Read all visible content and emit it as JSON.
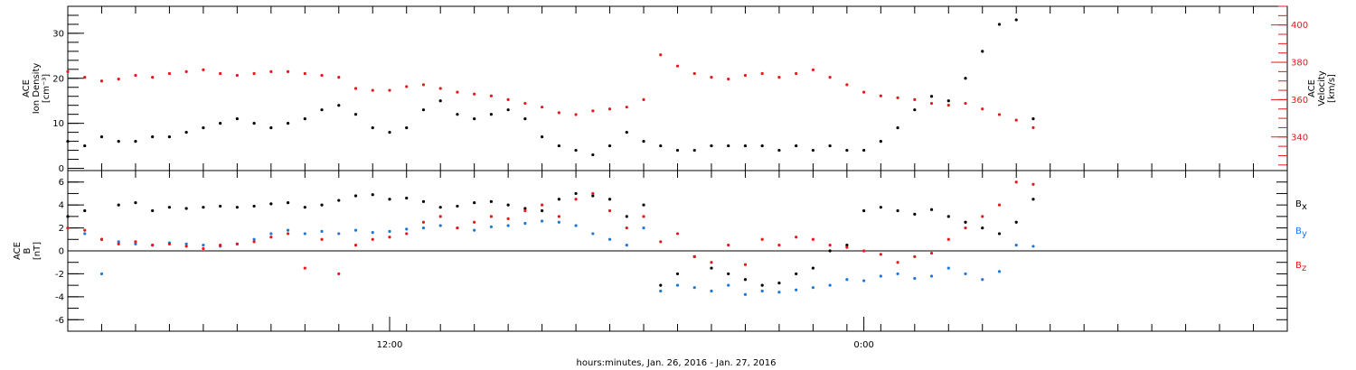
{
  "colors": {
    "axis": "#000000",
    "density": "#000000",
    "velocity": "#e41a1c",
    "bx": "#000000",
    "by": "#1f78d4",
    "bz": "#e41a1c"
  },
  "chart_data": [
    {
      "id": "top",
      "type": "scatter",
      "xlabel": "hours:minutes, Jan. 26, 2016 - Jan. 27, 2016",
      "x_range": [
        0,
        36
      ],
      "x_ticks": [
        {
          "value": 9.5,
          "label": "12:00"
        },
        {
          "value": 23.5,
          "label": "0:00"
        }
      ],
      "ylabel_left": [
        "ACE",
        "Ion Density",
        "[cm⁻³]"
      ],
      "ylim_left": [
        -0.5,
        36
      ],
      "yticks_left": [
        0,
        10,
        20,
        30
      ],
      "ylabel_right": [
        "ACE",
        "Velocity",
        "[km/s]"
      ],
      "ylim_right": [
        322,
        410
      ],
      "yticks_right": [
        340,
        360,
        380,
        400
      ],
      "series": [
        {
          "name": "",
          "axis": "left",
          "color_key": "density",
          "x": [
            0,
            0.5,
            1,
            1.5,
            2,
            2.5,
            3,
            3.5,
            4,
            4.5,
            5,
            5.5,
            6,
            6.5,
            7,
            7.5,
            8,
            8.5,
            9,
            9.5,
            10,
            10.5,
            11,
            11.5,
            12,
            12.5,
            13,
            13.5,
            14,
            14.5,
            15,
            15.5,
            16,
            16.5,
            17,
            17.5,
            18,
            18.5,
            19,
            19.5,
            20,
            20.5,
            21,
            21.5,
            22,
            22.5,
            23,
            23.5,
            24,
            24.5,
            25,
            25.5,
            26,
            26.5,
            27,
            27.5,
            28,
            28.5
          ],
          "y": [
            6,
            5,
            7,
            6,
            6,
            7,
            7,
            8,
            9,
            10,
            11,
            10,
            9,
            10,
            11,
            13,
            14,
            12,
            9,
            8,
            9,
            13,
            15,
            12,
            11,
            12,
            13,
            11,
            7,
            5,
            4,
            3,
            5,
            8,
            6,
            5,
            4,
            4,
            5,
            5,
            5,
            5,
            4,
            5,
            4,
            5,
            4,
            4,
            6,
            9,
            13,
            16,
            15,
            20,
            26,
            32,
            33,
            11
          ]
        },
        {
          "name": "",
          "axis": "right",
          "color_key": "velocity",
          "x": [
            0,
            0.5,
            1,
            1.5,
            2,
            2.5,
            3,
            3.5,
            4,
            4.5,
            5,
            5.5,
            6,
            6.5,
            7,
            7.5,
            8,
            8.5,
            9,
            9.5,
            10,
            10.5,
            11,
            11.5,
            12,
            12.5,
            13,
            13.5,
            14,
            14.5,
            15,
            15.5,
            16,
            16.5,
            17,
            17.5,
            18,
            18.5,
            19,
            19.5,
            20,
            20.5,
            21,
            21.5,
            22,
            22.5,
            23,
            23.5,
            24,
            24.5,
            25,
            25.5,
            26,
            26.5,
            27,
            27.5,
            28,
            28.5
          ],
          "y": [
            375,
            372,
            370,
            371,
            373,
            372,
            374,
            375,
            376,
            374,
            373,
            374,
            375,
            375,
            374,
            373,
            372,
            366,
            365,
            365,
            367,
            368,
            366,
            364,
            363,
            362,
            360,
            358,
            356,
            353,
            352,
            354,
            355,
            356,
            360,
            384,
            378,
            374,
            372,
            371,
            373,
            374,
            372,
            374,
            376,
            372,
            368,
            364,
            362,
            361,
            360,
            358,
            357,
            358,
            355,
            352,
            349,
            345
          ]
        }
      ]
    },
    {
      "id": "bottom",
      "type": "scatter",
      "x_range": [
        0,
        36
      ],
      "ylabel": [
        "ACE",
        "B",
        "[nT]"
      ],
      "ylim": [
        -7,
        7
      ],
      "yticks": [
        -6,
        -4,
        -2,
        0,
        2,
        4,
        6
      ],
      "series": [
        {
          "name": "B",
          "sub": "x",
          "color_key": "bx",
          "x": [
            0,
            0.5,
            1,
            1.5,
            2,
            2.5,
            3,
            3.5,
            4,
            4.5,
            5,
            5.5,
            6,
            6.5,
            7,
            7.5,
            8,
            8.5,
            9,
            9.5,
            10,
            10.5,
            11,
            11.5,
            12,
            12.5,
            13,
            13.5,
            14,
            14.5,
            15,
            15.5,
            16,
            16.5,
            17,
            17.5,
            18,
            18.5,
            19,
            19.5,
            20,
            20.5,
            21,
            21.5,
            22,
            22.5,
            23,
            23.5,
            24,
            24.5,
            25,
            25.5,
            26,
            26.5,
            27,
            27.5,
            28,
            28.5
          ],
          "y": [
            3,
            3.5,
            1,
            4,
            4.2,
            3.5,
            3.8,
            3.7,
            3.8,
            3.9,
            3.8,
            3.9,
            4.1,
            4.2,
            3.8,
            4,
            4.4,
            4.8,
            4.9,
            4.5,
            4.6,
            4.3,
            3.8,
            3.9,
            4.2,
            4.3,
            4,
            3.7,
            3.5,
            4.5,
            5,
            4.8,
            4.5,
            3,
            4,
            -3,
            -2,
            -0.5,
            -1.5,
            -2,
            -2.5,
            -3,
            -2.8,
            -2,
            -1.5,
            0,
            0.5,
            3.5,
            3.8,
            3.5,
            3.2,
            3.6,
            3,
            2.5,
            2,
            1.5,
            2.5,
            4.5
          ]
        },
        {
          "name": "B",
          "sub": "y",
          "color_key": "by",
          "x": [
            0,
            0.5,
            1,
            1.5,
            2,
            2.5,
            3,
            3.5,
            4,
            4.5,
            5,
            5.5,
            6,
            6.5,
            7,
            7.5,
            8,
            8.5,
            9,
            9.5,
            10,
            10.5,
            11,
            11.5,
            12,
            12.5,
            13,
            13.5,
            14,
            14.5,
            15,
            15.5,
            16,
            16.5,
            17,
            17.5,
            18,
            18.5,
            19,
            19.5,
            20,
            20.5,
            21,
            21.5,
            22,
            22.5,
            23,
            23.5,
            24,
            24.5,
            25,
            25.5,
            26,
            26.5,
            27,
            27.5,
            28,
            28.5
          ],
          "y": [
            2,
            1.5,
            -2,
            0.8,
            0.6,
            0.5,
            0.7,
            0.6,
            0.5,
            0.4,
            0.6,
            1,
            1.5,
            1.8,
            1.5,
            1.7,
            1.5,
            1.8,
            1.6,
            1.7,
            1.9,
            2,
            2.2,
            2,
            1.8,
            2.1,
            2.2,
            2.4,
            2.6,
            2.5,
            2.2,
            1.5,
            1,
            0.5,
            2,
            -3.5,
            -3,
            -3.2,
            -3.5,
            -3,
            -3.8,
            -3.5,
            -3.6,
            -3.4,
            -3.2,
            -3,
            -2.5,
            -2.6,
            -2.2,
            -2,
            -2.4,
            -2.2,
            -1.5,
            -2,
            -2.5,
            -1.8,
            0.5,
            0.4
          ]
        },
        {
          "name": "B",
          "sub": "z",
          "color_key": "bz",
          "x": [
            0,
            0.5,
            1,
            1.5,
            2,
            2.5,
            3,
            3.5,
            4,
            4.5,
            5,
            5.5,
            6,
            6.5,
            7,
            7.5,
            8,
            8.5,
            9,
            9.5,
            10,
            10.5,
            11,
            11.5,
            12,
            12.5,
            13,
            13.5,
            14,
            14.5,
            15,
            15.5,
            16,
            16.5,
            17,
            17.5,
            18,
            18.5,
            19,
            19.5,
            20,
            20.5,
            21,
            21.5,
            22,
            22.5,
            23,
            23.5,
            24,
            24.5,
            25,
            25.5,
            26,
            26.5,
            27,
            27.5,
            28,
            28.5
          ],
          "y": [
            2,
            1.8,
            1,
            0.6,
            0.8,
            0.5,
            0.6,
            0.4,
            0.2,
            0.5,
            0.6,
            0.8,
            1.2,
            1.5,
            -1.5,
            1,
            -2,
            0.5,
            1,
            1.2,
            1.5,
            2.5,
            3,
            2,
            2.5,
            3,
            2.8,
            3.5,
            4,
            3,
            4.5,
            5,
            3.5,
            2,
            3,
            0.8,
            1.5,
            -0.5,
            -1,
            0.5,
            -1.2,
            1,
            0.5,
            1.2,
            1,
            0.5,
            0.3,
            0,
            -0.3,
            -1,
            -0.5,
            -0.2,
            1,
            2,
            3,
            4,
            6,
            5.8
          ]
        }
      ]
    }
  ]
}
